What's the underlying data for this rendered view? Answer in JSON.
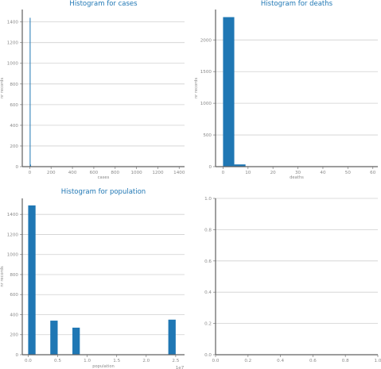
{
  "chart_data": [
    {
      "type": "bar",
      "title": "Histogram for cases",
      "xlabel": "cases",
      "ylabel": "nr records",
      "xlim": [
        -70,
        1450
      ],
      "ylim": [
        0,
        1520
      ],
      "xticks": [
        0,
        200,
        400,
        600,
        800,
        1000,
        1200,
        1400
      ],
      "yticks": [
        0,
        200,
        400,
        600,
        800,
        1000,
        1200,
        1400
      ],
      "grid": "horizontal",
      "color": "#1f77b4",
      "bins": [
        {
          "x0": 0,
          "x1": 4,
          "count": 1440
        },
        {
          "x0": 4,
          "x1": 8,
          "count": 20
        },
        {
          "x0": 8,
          "x1": 12,
          "count": 4
        }
      ]
    },
    {
      "type": "bar",
      "title": "Histogram for deaths",
      "xlabel": "deaths",
      "ylabel": "nr records",
      "xlim": [
        -3,
        62
      ],
      "ylim": [
        0,
        2480
      ],
      "xticks": [
        0,
        10,
        20,
        30,
        40,
        50,
        60
      ],
      "yticks": [
        0,
        500,
        1000,
        1500,
        2000
      ],
      "grid": "horizontal",
      "color": "#1f77b4",
      "bins": [
        {
          "x0": 0,
          "x1": 4.5,
          "count": 2360
        },
        {
          "x0": 4.5,
          "x1": 9,
          "count": 35
        },
        {
          "x0": 9,
          "x1": 13.5,
          "count": 4
        }
      ]
    },
    {
      "type": "bar",
      "title": "Histogram for population",
      "xlabel": "population",
      "ylabel": "nr records",
      "x_multiplier": "1e7",
      "xlim": [
        -0.1,
        2.65
      ],
      "ylim": [
        0,
        1560
      ],
      "xticks": [
        0.0,
        0.5,
        1.0,
        1.5,
        2.0,
        2.5
      ],
      "xticklabels": [
        "0.0",
        "0.5",
        "1.0",
        "1.5",
        "2.0",
        "2.5"
      ],
      "yticks": [
        0,
        200,
        400,
        600,
        800,
        1000,
        1200,
        1400
      ],
      "grid": "horizontal",
      "color": "#1f77b4",
      "bins": [
        {
          "x0": 0.0,
          "x1": 0.125,
          "count": 1490
        },
        {
          "x0": 0.375,
          "x1": 0.5,
          "count": 340
        },
        {
          "x0": 0.75,
          "x1": 0.875,
          "count": 270
        },
        {
          "x0": 2.375,
          "x1": 2.5,
          "count": 350
        }
      ]
    },
    {
      "type": "bar",
      "title": "",
      "xlabel": "",
      "ylabel": "",
      "xlim": [
        0,
        1
      ],
      "ylim": [
        0,
        1
      ],
      "xticks": [
        0.0,
        0.2,
        0.4,
        0.6,
        0.8,
        1.0
      ],
      "xticklabels": [
        "0.0",
        "0.2",
        "0.4",
        "0.6",
        "0.8",
        "1.0"
      ],
      "yticks": [
        0.0,
        0.2,
        0.4,
        0.6,
        0.8,
        1.0
      ],
      "yticklabels": [
        "0.0",
        "0.2",
        "0.4",
        "0.6",
        "0.8",
        "1.0"
      ],
      "grid": "horizontal",
      "color": "#1f77b4",
      "bins": []
    }
  ]
}
